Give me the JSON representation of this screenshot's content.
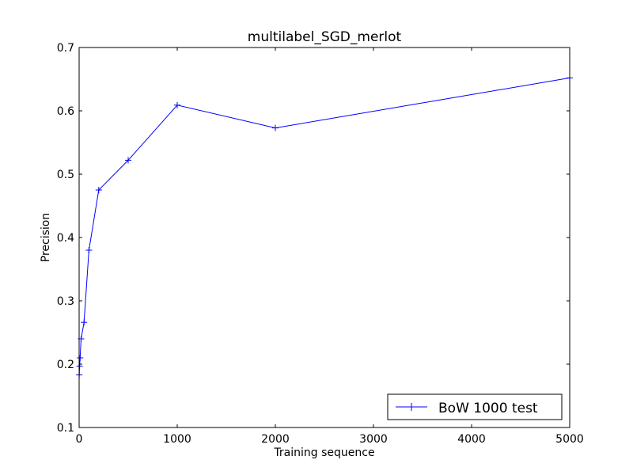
{
  "chart_data": {
    "type": "line",
    "title": "multilabel_SGD_merlot",
    "xlabel": "Training sequence",
    "ylabel": "Precision",
    "xlim": [
      0,
      5000
    ],
    "ylim": [
      0.1,
      0.7
    ],
    "grid": false,
    "legend": {
      "placement": "bottom-right"
    },
    "x_ticks": [
      0,
      1000,
      2000,
      3000,
      4000,
      5000
    ],
    "x_tick_labels": [
      "0",
      "1000",
      "2000",
      "3000",
      "4000",
      "5000"
    ],
    "y_ticks": [
      0.1,
      0.2,
      0.3,
      0.4,
      0.5,
      0.6,
      0.7
    ],
    "y_tick_labels": [
      "0.1",
      "0.2",
      "0.3",
      "0.4",
      "0.5",
      "0.6",
      "0.7"
    ],
    "series": [
      {
        "name": "BoW 1000 test",
        "color": "#0000ff",
        "marker": "+",
        "x": [
          1,
          5,
          10,
          20,
          50,
          100,
          200,
          500,
          1000,
          2000,
          5000
        ],
        "y": [
          0.183,
          0.197,
          0.21,
          0.24,
          0.266,
          0.38,
          0.475,
          0.522,
          0.609,
          0.573,
          0.652
        ]
      }
    ]
  }
}
